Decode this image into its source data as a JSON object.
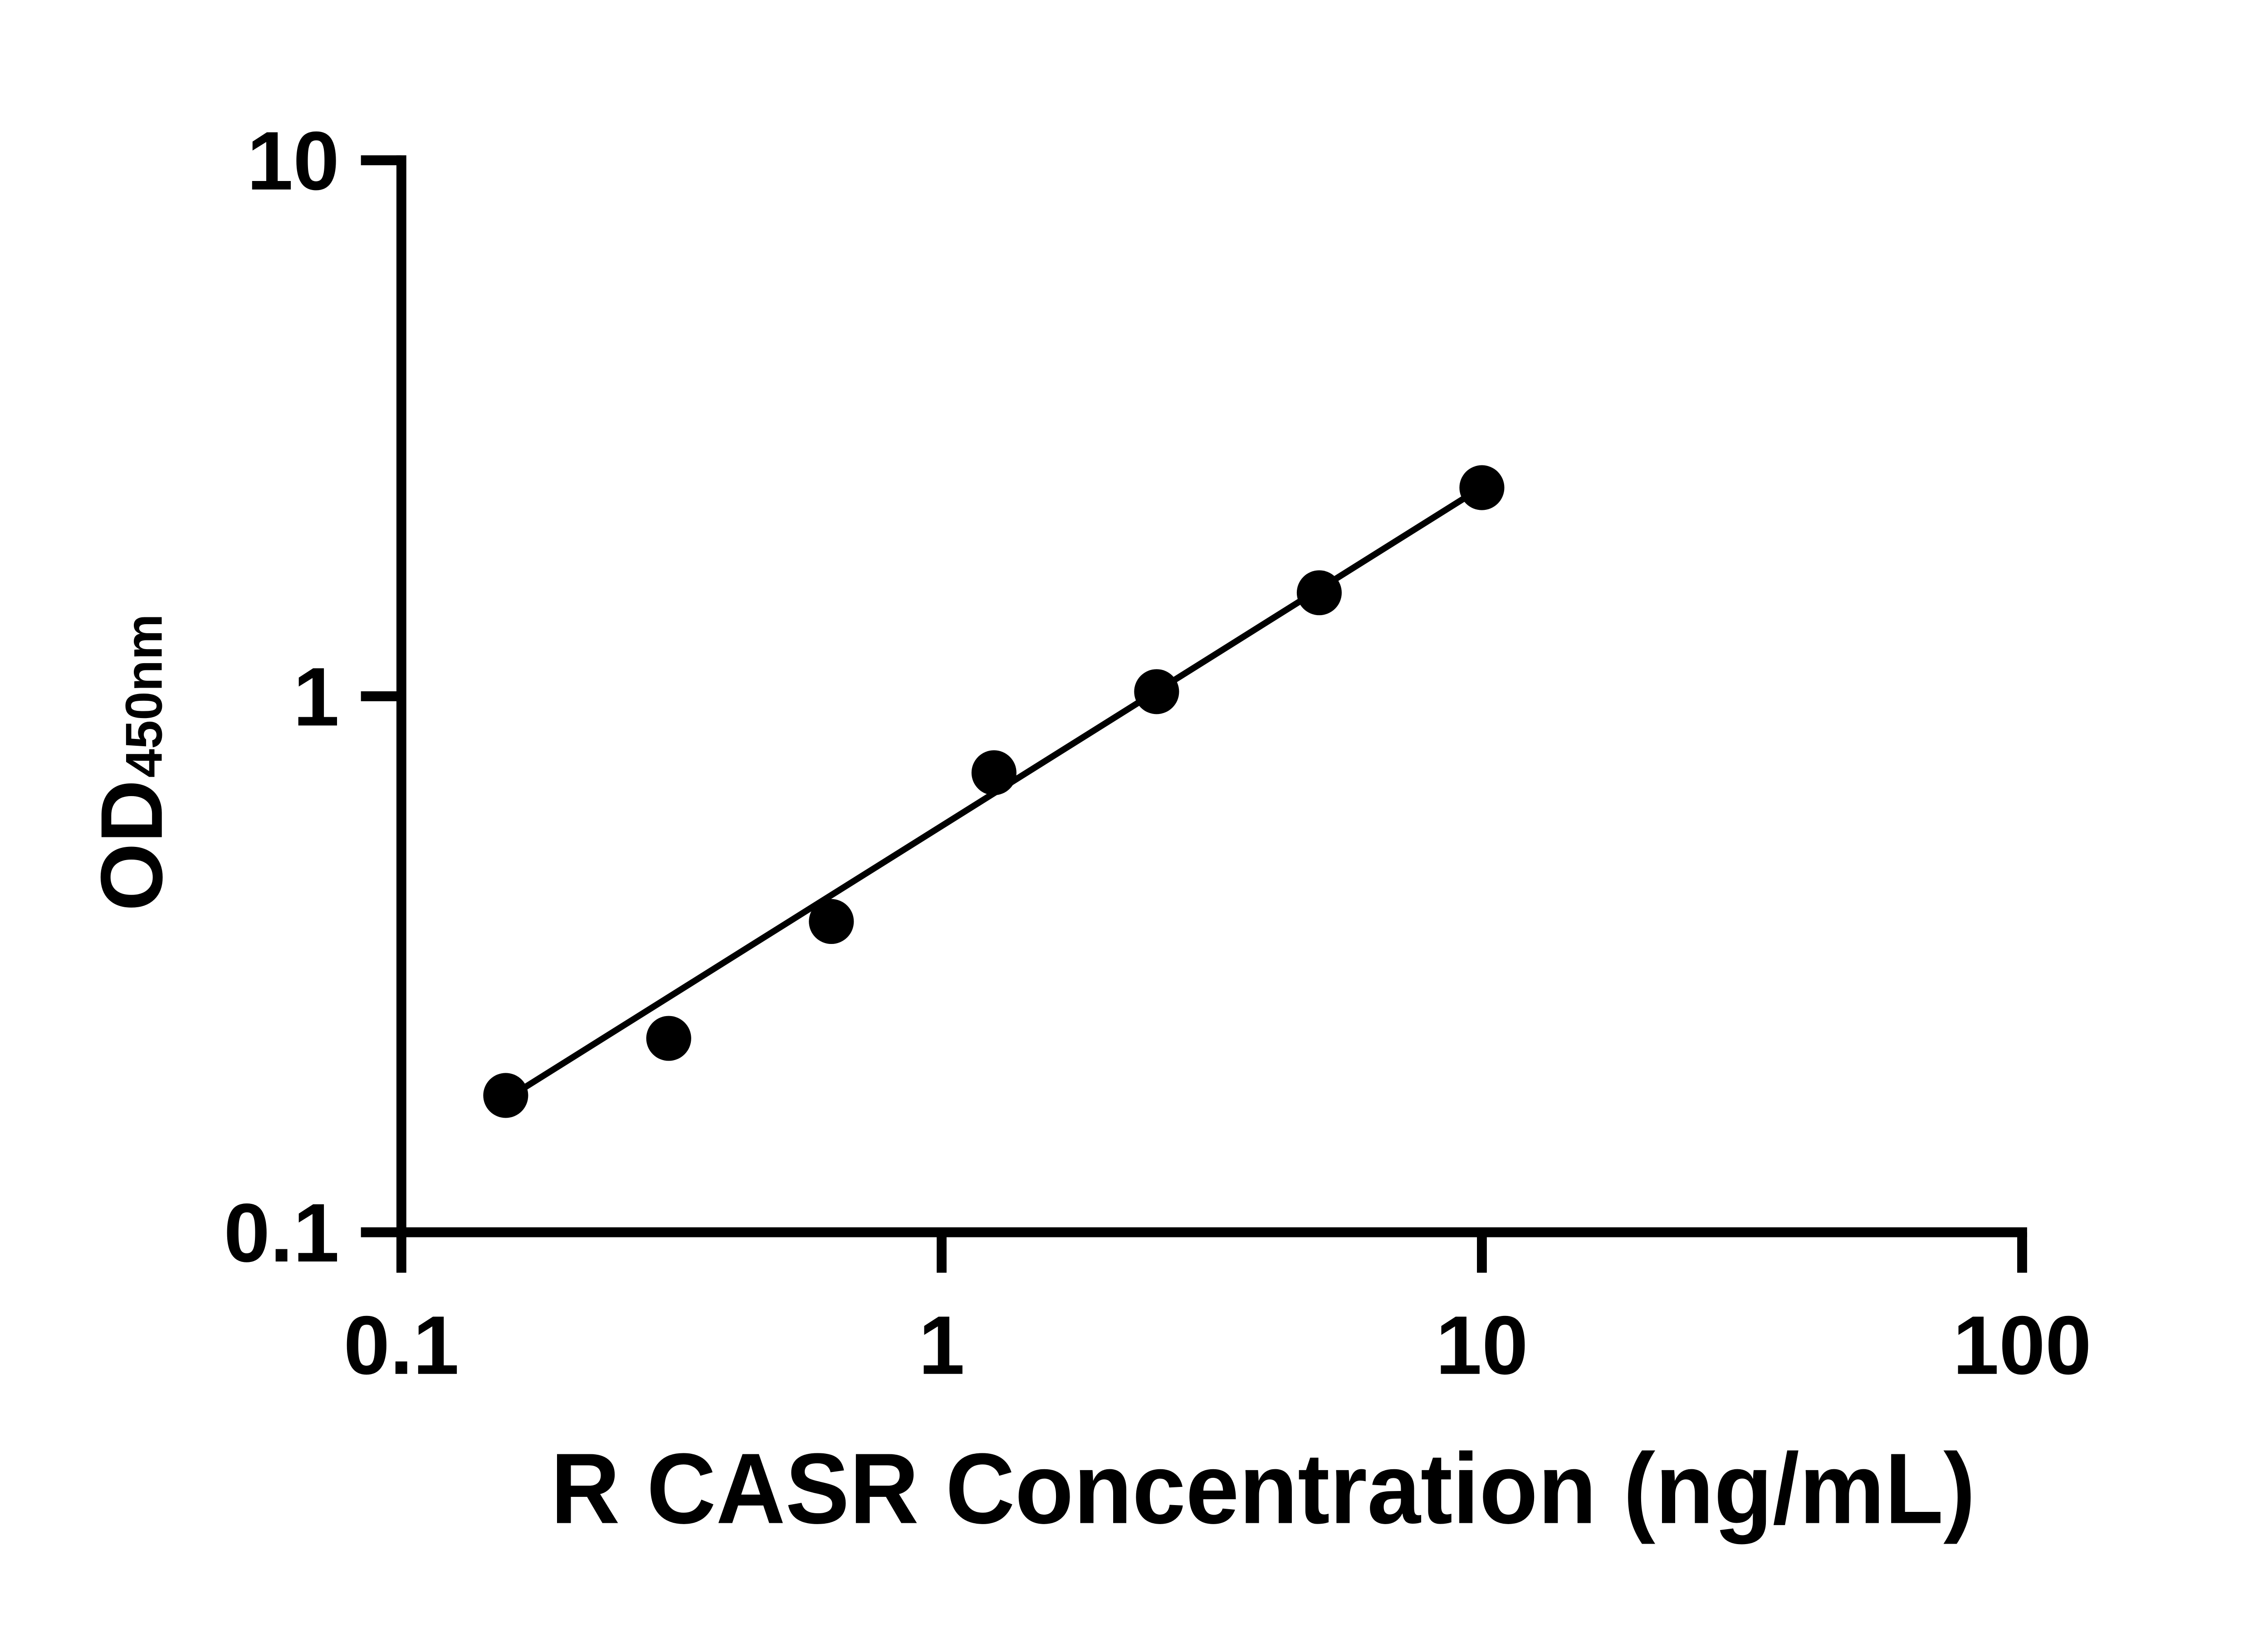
{
  "figure": {
    "background": "#ffffff",
    "ink_color": "#000000"
  },
  "chart_data": {
    "type": "scatter",
    "title": "",
    "xlabel": "R CASR Concentration (ng/mL)",
    "ylabel": {
      "main": "OD",
      "subscript": "450nm"
    },
    "x_scale": "log",
    "y_scale": "log",
    "xlim": [
      0.1,
      100
    ],
    "ylim": [
      0.1,
      10
    ],
    "grid": false,
    "legend": null,
    "x_ticks": [
      {
        "value": 0.1,
        "label": "0.1"
      },
      {
        "value": 1,
        "label": "1"
      },
      {
        "value": 10,
        "label": "10"
      },
      {
        "value": 100,
        "label": "100"
      }
    ],
    "y_ticks": [
      {
        "value": 0.1,
        "label": "0.1"
      },
      {
        "value": 1,
        "label": "1"
      },
      {
        "value": 10,
        "label": "10"
      }
    ],
    "series": [
      {
        "name": "standard-points",
        "type": "scatter",
        "marker": "filled-circle",
        "color": "#000000",
        "points": [
          {
            "x": 0.156,
            "y": 0.18
          },
          {
            "x": 0.3125,
            "y": 0.23
          },
          {
            "x": 0.625,
            "y": 0.38
          },
          {
            "x": 1.25,
            "y": 0.72
          },
          {
            "x": 2.5,
            "y": 1.02
          },
          {
            "x": 5,
            "y": 1.56
          },
          {
            "x": 10,
            "y": 2.45
          }
        ]
      },
      {
        "name": "fit-line",
        "type": "line",
        "color": "#000000",
        "points": [
          {
            "x": 0.156,
            "y": 0.177
          },
          {
            "x": 10,
            "y": 2.455
          }
        ]
      }
    ]
  }
}
